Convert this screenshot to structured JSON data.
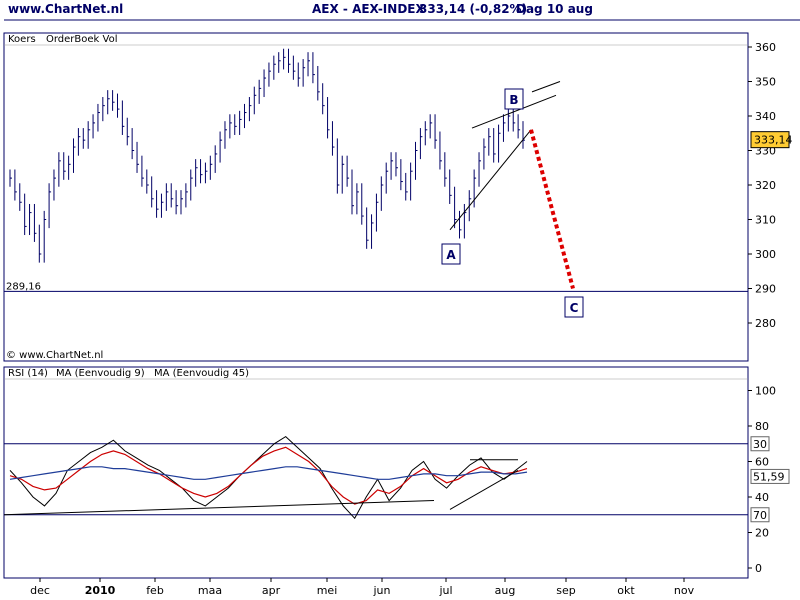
{
  "header": {
    "site": "www.ChartNet.nl",
    "index": "AEX - AEX-INDEX",
    "last": "333,14 (-0,82%)",
    "period": "Dag  10 aug"
  },
  "price_panel": {
    "legend": [
      "Koers",
      "OrderBoek Vol"
    ],
    "copyright": "© www.ChartNet.nl",
    "level_label": "289,16",
    "last_badge": "333,14"
  },
  "rsi_panel": {
    "legend": [
      {
        "text": "RSI (14)",
        "color": "#000000"
      },
      {
        "text": "MA (Eenvoudig 9)",
        "color": "#cc0000"
      },
      {
        "text": "MA (Eenvoudig 45)",
        "color": "#000080"
      }
    ],
    "badges": [
      "70",
      "30",
      "51,59"
    ]
  },
  "colors": {
    "frame": "#000066",
    "price": "#000066",
    "rsi": "#000000",
    "ma9": "#cc0000",
    "ma45": "#1f3d99",
    "target": "#dd0000",
    "badge_fill": "#ffcc33"
  },
  "chart_data": [
    {
      "type": "bar",
      "title": "AEX - AEX-INDEX",
      "ylim": [
        270,
        365
      ],
      "yticks": [
        280,
        290,
        300,
        310,
        320,
        330,
        340,
        350,
        360
      ],
      "months": [
        "dec",
        "2010",
        "feb",
        "maa",
        "apr",
        "mei",
        "jun",
        "jul",
        "aug",
        "sep",
        "okt",
        "nov"
      ],
      "last_close": 333.14,
      "support_level": 289.16,
      "series": [
        {
          "month": "nov",
          "close": [
            322,
            318,
            315,
            308,
            312
          ]
        },
        {
          "month": "dec",
          "close": [
            306,
            300,
            310,
            318,
            322,
            327,
            324,
            326,
            331,
            334,
            333,
            336
          ]
        },
        {
          "month": "2010",
          "close": [
            338,
            341,
            343,
            345,
            344,
            342,
            337,
            334,
            330,
            326,
            322,
            320
          ]
        },
        {
          "month": "feb",
          "close": [
            316,
            313,
            315,
            318,
            316,
            314,
            316,
            318,
            322,
            325,
            323,
            324
          ]
        },
        {
          "month": "maa",
          "close": [
            326,
            329,
            333,
            336,
            338,
            337,
            339,
            341,
            343,
            346,
            348,
            351
          ]
        },
        {
          "month": "apr",
          "close": [
            353,
            355,
            356,
            357,
            355,
            353,
            351,
            354,
            356,
            352,
            347,
            343
          ]
        },
        {
          "month": "mei",
          "close": [
            336,
            331,
            320,
            326,
            322,
            314,
            318,
            311,
            304,
            309,
            315,
            320
          ]
        },
        {
          "month": "jun",
          "close": [
            324,
            327,
            325,
            321,
            318,
            324,
            330,
            334,
            336,
            338,
            333,
            327
          ]
        },
        {
          "month": "jul",
          "close": [
            322,
            317,
            310,
            307,
            312,
            316,
            322,
            327,
            331,
            334,
            329,
            335
          ]
        },
        {
          "month": "aug",
          "close": [
            338,
            340,
            338,
            336,
            333
          ]
        }
      ],
      "annotations": [
        {
          "label": "A",
          "value": 307
        },
        {
          "label": "B",
          "value": 341
        },
        {
          "label": "C",
          "value": 289
        }
      ]
    },
    {
      "type": "line",
      "title": "RSI (14)",
      "ylim": [
        0,
        100
      ],
      "yticks": [
        0,
        20,
        40,
        60,
        80,
        100
      ],
      "reference_lines": [
        30,
        70
      ],
      "last_rsi": 51.59,
      "series": [
        {
          "name": "RSI (14)",
          "values": [
            55,
            48,
            40,
            35,
            42,
            55,
            60,
            65,
            68,
            72,
            66,
            62,
            58,
            55,
            50,
            45,
            38,
            35,
            40,
            45,
            52,
            58,
            64,
            70,
            74,
            68,
            62,
            56,
            45,
            35,
            28,
            40,
            50,
            38,
            45,
            55,
            60,
            50,
            45,
            52,
            58,
            62,
            54,
            50,
            55,
            60
          ]
        },
        {
          "name": "MA (Eenvoudig 9)",
          "values": [
            52,
            50,
            46,
            44,
            45,
            50,
            55,
            60,
            64,
            66,
            64,
            60,
            56,
            53,
            49,
            45,
            42,
            40,
            42,
            46,
            52,
            58,
            63,
            66,
            68,
            64,
            60,
            54,
            46,
            40,
            36,
            38,
            44,
            42,
            46,
            52,
            56,
            52,
            48,
            50,
            54,
            57,
            55,
            53,
            54,
            56
          ]
        },
        {
          "name": "MA (Eenvoudig 45)",
          "values": [
            50,
            51,
            52,
            53,
            54,
            55,
            56,
            57,
            57,
            56,
            56,
            55,
            54,
            53,
            52,
            51,
            50,
            50,
            51,
            52,
            53,
            54,
            55,
            56,
            57,
            57,
            56,
            55,
            54,
            53,
            52,
            51,
            50,
            50,
            51,
            52,
            53,
            53,
            52,
            52,
            53,
            54,
            54,
            53,
            53,
            54
          ]
        }
      ]
    }
  ]
}
